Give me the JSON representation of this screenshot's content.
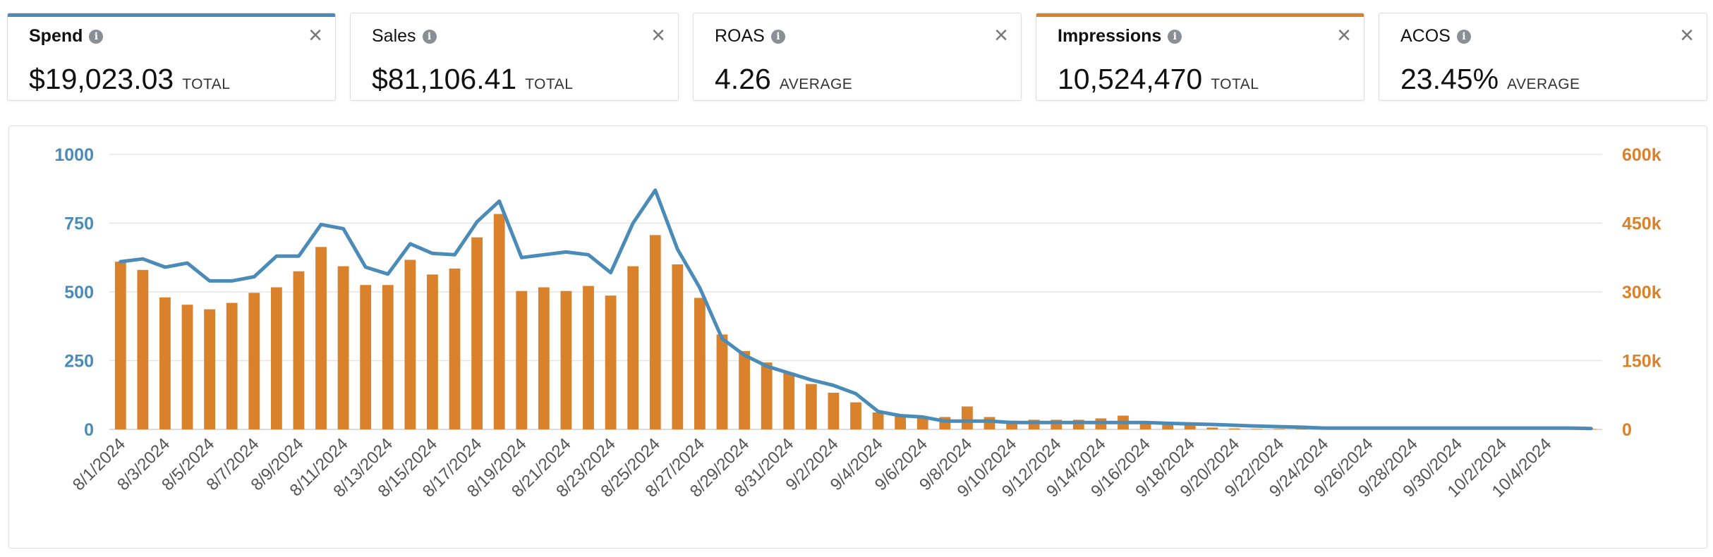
{
  "metrics": [
    {
      "label": "Spend",
      "value": "$19,023.03",
      "agg": "TOTAL",
      "selected": true,
      "accent": "#4a8cb7"
    },
    {
      "label": "Sales",
      "value": "$81,106.41",
      "agg": "TOTAL",
      "selected": false,
      "accent": null
    },
    {
      "label": "ROAS",
      "value": "4.26",
      "agg": "AVERAGE",
      "selected": false,
      "accent": null
    },
    {
      "label": "Impressions",
      "value": "10,524,470",
      "agg": "TOTAL",
      "selected": true,
      "accent": "#d9822b"
    },
    {
      "label": "ACOS",
      "value": "23.45%",
      "agg": "AVERAGE",
      "selected": false,
      "accent": null
    }
  ],
  "icons": {
    "info": "info-icon",
    "close": "close-icon"
  },
  "glyphs": {
    "info": "i",
    "close": "×"
  },
  "colors": {
    "spend": "#4a8cb7",
    "impressions": "#d9822b",
    "grid": "#e6e6e6",
    "axis_text": "#555555"
  },
  "chart_data": {
    "type": "bar+line",
    "x_dates": [
      "8/1/2024",
      "8/2/2024",
      "8/3/2024",
      "8/4/2024",
      "8/5/2024",
      "8/6/2024",
      "8/7/2024",
      "8/8/2024",
      "8/9/2024",
      "8/10/2024",
      "8/11/2024",
      "8/12/2024",
      "8/13/2024",
      "8/14/2024",
      "8/15/2024",
      "8/16/2024",
      "8/17/2024",
      "8/18/2024",
      "8/19/2024",
      "8/20/2024",
      "8/21/2024",
      "8/22/2024",
      "8/23/2024",
      "8/24/2024",
      "8/25/2024",
      "8/26/2024",
      "8/27/2024",
      "8/28/2024",
      "8/29/2024",
      "8/30/2024",
      "8/31/2024",
      "9/1/2024",
      "9/2/2024",
      "9/3/2024",
      "9/4/2024",
      "9/5/2024",
      "9/6/2024",
      "9/7/2024",
      "9/8/2024",
      "9/9/2024",
      "9/10/2024",
      "9/11/2024",
      "9/12/2024",
      "9/13/2024",
      "9/14/2024",
      "9/15/2024",
      "9/16/2024",
      "9/17/2024",
      "9/18/2024",
      "9/19/2024",
      "9/20/2024",
      "9/21/2024",
      "9/22/2024",
      "9/23/2024",
      "9/24/2024",
      "9/25/2024",
      "9/26/2024",
      "9/27/2024",
      "9/28/2024",
      "9/29/2024",
      "9/30/2024",
      "10/1/2024",
      "10/2/2024",
      "10/3/2024",
      "10/4/2024",
      "10/5/2024",
      "10/6/2024"
    ],
    "x_tick_labels": [
      "8/1/2024",
      "8/3/2024",
      "8/5/2024",
      "8/7/2024",
      "8/9/2024",
      "8/11/2024",
      "8/13/2024",
      "8/15/2024",
      "8/17/2024",
      "8/19/2024",
      "8/21/2024",
      "8/23/2024",
      "8/25/2024",
      "8/27/2024",
      "8/29/2024",
      "8/31/2024",
      "9/2/2024",
      "9/4/2024",
      "9/6/2024",
      "9/8/2024",
      "9/10/2024",
      "9/12/2024",
      "9/14/2024",
      "9/16/2024",
      "9/18/2024",
      "9/20/2024",
      "9/22/2024",
      "9/24/2024",
      "9/26/2024",
      "9/28/2024",
      "9/30/2024",
      "10/2/2024",
      "10/4/2024"
    ],
    "y_left": {
      "min": 0,
      "max": 1000,
      "ticks": [
        0,
        250,
        500,
        750,
        1000
      ],
      "labels": [
        "0",
        "250",
        "500",
        "750",
        "1000"
      ]
    },
    "y_right": {
      "min": 0,
      "max": 600000,
      "ticks": [
        0,
        150000,
        300000,
        450000,
        600000
      ],
      "labels": [
        "0",
        "150k",
        "300k",
        "450k",
        "600k"
      ]
    },
    "series": [
      {
        "name": "Impressions",
        "type": "bar",
        "axis": "right",
        "values": [
          366000,
          348000,
          288000,
          272000,
          262000,
          276000,
          298000,
          310000,
          345000,
          398000,
          356000,
          315000,
          315000,
          370000,
          338000,
          351000,
          419000,
          470000,
          302000,
          310000,
          302000,
          313000,
          292000,
          356000,
          424000,
          360000,
          287000,
          207000,
          171000,
          146000,
          124000,
          99000,
          80000,
          59000,
          37000,
          33000,
          26000,
          27000,
          50000,
          27000,
          19000,
          21000,
          21000,
          21000,
          24000,
          30000,
          18000,
          15000,
          10000,
          4000,
          2000,
          1000,
          1000,
          1000,
          1000,
          1000,
          1000,
          1000,
          1000,
          1000,
          1000,
          1000,
          1000,
          1000,
          1000,
          1000,
          1000
        ]
      },
      {
        "name": "Spend",
        "type": "line",
        "axis": "left",
        "values": [
          610,
          620,
          590,
          605,
          540,
          540,
          555,
          630,
          630,
          745,
          730,
          590,
          565,
          675,
          640,
          635,
          755,
          830,
          625,
          635,
          645,
          635,
          570,
          750,
          870,
          655,
          515,
          330,
          270,
          230,
          205,
          180,
          160,
          130,
          65,
          50,
          45,
          30,
          30,
          30,
          25,
          25,
          25,
          25,
          25,
          25,
          25,
          22,
          20,
          18,
          15,
          12,
          10,
          8,
          5,
          5,
          5,
          5,
          5,
          5,
          5,
          5,
          5,
          5,
          5,
          5,
          3
        ]
      }
    ]
  }
}
